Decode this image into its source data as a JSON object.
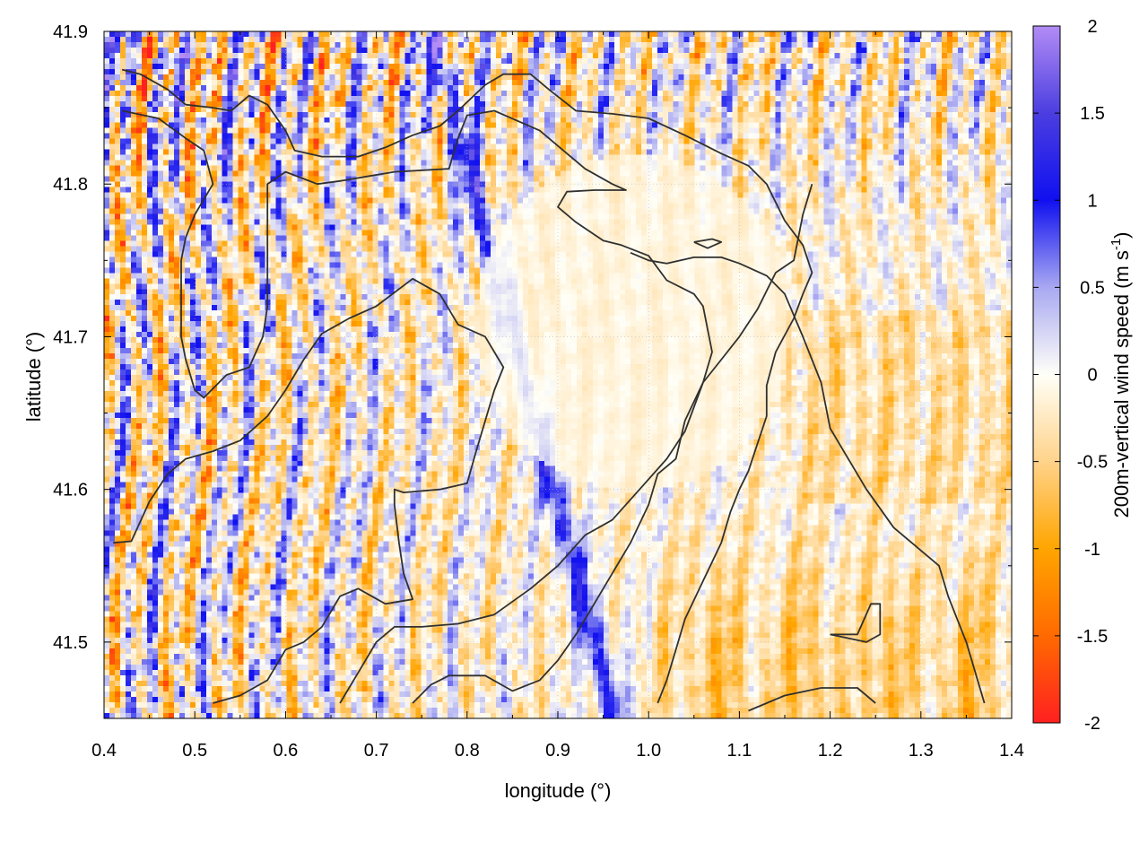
{
  "chart_data": {
    "type": "heatmap",
    "xlabel": "longitude (°)",
    "ylabel": "latitude (°)",
    "colorbar_label_main": "200m-vertical wind speed (m s",
    "colorbar_label_sup": "-1",
    "colorbar_label_end": ")",
    "xlim": [
      0.4,
      1.4
    ],
    "ylim": [
      41.45,
      41.9
    ],
    "x_ticks": [
      0.4,
      0.5,
      0.6,
      0.7,
      0.8,
      0.9,
      1.0,
      1.1,
      1.2,
      1.3,
      1.4
    ],
    "x_tick_labels": [
      "0.4",
      "0.5",
      "0.6",
      "0.7",
      "0.8",
      "0.9",
      "1.0",
      "1.1",
      "1.2",
      "1.3",
      "1.4"
    ],
    "y_ticks": [
      41.5,
      41.6,
      41.7,
      41.8,
      41.9
    ],
    "y_tick_labels": [
      "41.5",
      "41.6",
      "41.7",
      "41.8",
      "41.9"
    ],
    "clim": [
      -2,
      2
    ],
    "colorbar_ticks": [
      2,
      1.5,
      1,
      0.5,
      0,
      -0.5,
      -1,
      -1.5,
      -2
    ],
    "colorbar_tick_labels": [
      "2",
      "1.5",
      "1",
      "0.5",
      "0",
      "-0.5",
      "-1",
      "-1.5",
      "-2"
    ],
    "colormap": [
      {
        "v": -2,
        "color": "#ff2020"
      },
      {
        "v": -1.5,
        "color": "#ff6a00"
      },
      {
        "v": -1,
        "color": "#ffa500"
      },
      {
        "v": -0.5,
        "color": "#ffd38a"
      },
      {
        "v": 0,
        "color": "#fffff8"
      },
      {
        "v": 0.5,
        "color": "#a8a8f2"
      },
      {
        "v": 1,
        "color": "#1010f0"
      },
      {
        "v": 1.5,
        "color": "#4b3ee0"
      },
      {
        "v": 2,
        "color": "#b28cf5"
      }
    ],
    "grid": true,
    "contour_color": "#303030",
    "contours": [
      [
        [
          0.42,
          41.875
        ],
        [
          0.44,
          41.872
        ],
        [
          0.47,
          41.862
        ],
        [
          0.49,
          41.852
        ],
        [
          0.52,
          41.85
        ],
        [
          0.54,
          41.848
        ],
        [
          0.56,
          41.858
        ],
        [
          0.58,
          41.852
        ],
        [
          0.6,
          41.835
        ],
        [
          0.61,
          41.822
        ],
        [
          0.64,
          41.818
        ],
        [
          0.68,
          41.818
        ],
        [
          0.71,
          41.824
        ],
        [
          0.74,
          41.832
        ],
        [
          0.77,
          41.838
        ],
        [
          0.79,
          41.848
        ],
        [
          0.82,
          41.865
        ],
        [
          0.84,
          41.872
        ],
        [
          0.87,
          41.872
        ],
        [
          0.89,
          41.862
        ],
        [
          0.92,
          41.848
        ],
        [
          0.96,
          41.846
        ],
        [
          1.0,
          41.843
        ],
        [
          1.04,
          41.832
        ],
        [
          1.08,
          41.82
        ],
        [
          1.11,
          41.812
        ],
        [
          1.13,
          41.8
        ],
        [
          1.15,
          41.776
        ],
        [
          1.17,
          41.76
        ],
        [
          1.18,
          41.742
        ],
        [
          1.17,
          41.728
        ],
        [
          1.16,
          41.712
        ],
        [
          1.14,
          41.69
        ],
        [
          1.13,
          41.668
        ],
        [
          1.13,
          41.648
        ],
        [
          1.12,
          41.63
        ],
        [
          1.11,
          41.612
        ],
        [
          1.1,
          41.6
        ],
        [
          1.09,
          41.585
        ],
        [
          1.08,
          41.565
        ],
        [
          1.06,
          41.54
        ],
        [
          1.04,
          41.515
        ],
        [
          1.03,
          41.495
        ],
        [
          1.02,
          41.475
        ],
        [
          1.01,
          41.46
        ]
      ],
      [
        [
          0.42,
          41.848
        ],
        [
          0.46,
          41.843
        ],
        [
          0.49,
          41.83
        ],
        [
          0.51,
          41.822
        ],
        [
          0.52,
          41.8
        ],
        [
          0.5,
          41.78
        ],
        [
          0.49,
          41.765
        ],
        [
          0.485,
          41.75
        ],
        [
          0.485,
          41.7
        ],
        [
          0.49,
          41.685
        ],
        [
          0.5,
          41.665
        ],
        [
          0.51,
          41.66
        ],
        [
          0.535,
          41.675
        ],
        [
          0.56,
          41.68
        ],
        [
          0.575,
          41.7
        ],
        [
          0.58,
          41.72
        ],
        [
          0.58,
          41.8
        ],
        [
          0.6,
          41.808
        ],
        [
          0.635,
          41.8
        ],
        [
          0.66,
          41.802
        ],
        [
          0.69,
          41.805
        ],
        [
          0.72,
          41.808
        ],
        [
          0.78,
          41.81
        ],
        [
          0.79,
          41.83
        ],
        [
          0.8,
          41.845
        ],
        [
          0.83,
          41.848
        ],
        [
          0.88,
          41.835
        ],
        [
          0.93,
          41.81
        ],
        [
          0.96,
          41.8
        ],
        [
          0.975,
          41.796
        ],
        [
          0.94,
          41.796
        ],
        [
          0.91,
          41.795
        ],
        [
          0.9,
          41.785
        ],
        [
          0.92,
          41.775
        ],
        [
          0.95,
          41.763
        ],
        [
          0.97,
          41.76
        ],
        [
          1.0,
          41.753
        ],
        [
          1.02,
          41.737
        ],
        [
          1.05,
          41.728
        ],
        [
          1.06,
          41.72
        ],
        [
          1.07,
          41.69
        ],
        [
          1.06,
          41.67
        ],
        [
          1.04,
          41.645
        ],
        [
          1.03,
          41.62
        ],
        [
          1.01,
          41.61
        ],
        [
          1.0,
          41.59
        ],
        [
          0.98,
          41.565
        ],
        [
          0.96,
          41.545
        ],
        [
          0.94,
          41.525
        ],
        [
          0.92,
          41.505
        ],
        [
          0.9,
          41.488
        ],
        [
          0.88,
          41.475
        ],
        [
          0.85,
          41.468
        ],
        [
          0.82,
          41.478
        ],
        [
          0.78,
          41.478
        ],
        [
          0.76,
          41.472
        ],
        [
          0.74,
          41.46
        ]
      ],
      [
        [
          0.41,
          41.565
        ],
        [
          0.43,
          41.566
        ],
        [
          0.45,
          41.592
        ],
        [
          0.47,
          41.61
        ],
        [
          0.49,
          41.62
        ],
        [
          0.52,
          41.625
        ],
        [
          0.55,
          41.632
        ],
        [
          0.58,
          41.648
        ],
        [
          0.6,
          41.665
        ],
        [
          0.62,
          41.685
        ],
        [
          0.64,
          41.702
        ],
        [
          0.67,
          41.712
        ],
        [
          0.7,
          41.72
        ],
        [
          0.74,
          41.738
        ],
        [
          0.77,
          41.728
        ],
        [
          0.79,
          41.708
        ],
        [
          0.82,
          41.7
        ],
        [
          0.84,
          41.68
        ],
        [
          0.83,
          41.665
        ],
        [
          0.82,
          41.645
        ],
        [
          0.81,
          41.625
        ],
        [
          0.8,
          41.604
        ],
        [
          0.77,
          41.6
        ],
        [
          0.73,
          41.598
        ],
        [
          0.72,
          41.6
        ],
        [
          0.72,
          41.59
        ],
        [
          0.725,
          41.565
        ],
        [
          0.73,
          41.545
        ],
        [
          0.74,
          41.528
        ],
        [
          0.71,
          41.525
        ],
        [
          0.68,
          41.535
        ],
        [
          0.66,
          41.53
        ],
        [
          0.64,
          41.51
        ],
        [
          0.62,
          41.5
        ],
        [
          0.6,
          41.495
        ],
        [
          0.58,
          41.475
        ],
        [
          0.55,
          41.465
        ],
        [
          0.52,
          41.46
        ]
      ],
      [
        [
          0.66,
          41.46
        ],
        [
          0.68,
          41.48
        ],
        [
          0.7,
          41.5
        ],
        [
          0.72,
          41.51
        ],
        [
          0.75,
          41.51
        ],
        [
          0.79,
          41.512
        ],
        [
          0.83,
          41.518
        ],
        [
          0.87,
          41.535
        ],
        [
          0.9,
          41.55
        ],
        [
          0.93,
          41.57
        ],
        [
          0.96,
          41.58
        ],
        [
          0.99,
          41.6
        ],
        [
          1.02,
          41.62
        ],
        [
          1.04,
          41.638
        ],
        [
          1.06,
          41.67
        ],
        [
          1.08,
          41.685
        ],
        [
          1.1,
          41.7
        ],
        [
          1.12,
          41.718
        ],
        [
          1.14,
          41.742
        ],
        [
          1.16,
          41.75
        ],
        [
          1.17,
          41.78
        ],
        [
          1.18,
          41.8
        ]
      ],
      [
        [
          0.98,
          41.755
        ],
        [
          1.0,
          41.75
        ],
        [
          1.02,
          41.748
        ],
        [
          1.05,
          41.752
        ],
        [
          1.08,
          41.752
        ],
        [
          1.1,
          41.748
        ],
        [
          1.13,
          41.74
        ],
        [
          1.15,
          41.728
        ],
        [
          1.17,
          41.7
        ],
        [
          1.19,
          41.67
        ],
        [
          1.2,
          41.64
        ],
        [
          1.22,
          41.62
        ],
        [
          1.24,
          41.6
        ],
        [
          1.27,
          41.575
        ],
        [
          1.3,
          41.56
        ],
        [
          1.32,
          41.55
        ],
        [
          1.33,
          41.53
        ],
        [
          1.35,
          41.5
        ],
        [
          1.36,
          41.48
        ],
        [
          1.37,
          41.46
        ]
      ],
      [
        [
          1.11,
          41.455
        ],
        [
          1.15,
          41.465
        ],
        [
          1.19,
          41.47
        ],
        [
          1.23,
          41.47
        ],
        [
          1.25,
          41.46
        ]
      ],
      [
        [
          1.2,
          41.505
        ],
        [
          1.23,
          41.505
        ],
        [
          1.245,
          41.525
        ],
        [
          1.255,
          41.525
        ],
        [
          1.255,
          41.505
        ],
        [
          1.24,
          41.5
        ],
        [
          1.2,
          41.505
        ]
      ],
      [
        [
          1.05,
          41.762
        ],
        [
          1.07,
          41.764
        ],
        [
          1.08,
          41.762
        ],
        [
          1.065,
          41.758
        ],
        [
          1.05,
          41.762
        ]
      ]
    ]
  }
}
